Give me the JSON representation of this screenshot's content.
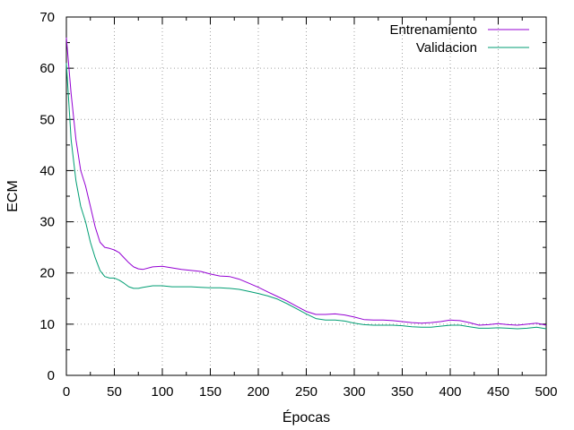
{
  "chart_data": {
    "type": "line",
    "title": "",
    "xlabel": "Épocas",
    "ylabel": "ECM",
    "xlim": [
      0,
      500
    ],
    "ylim": [
      0,
      70
    ],
    "x_ticks": [
      0,
      50,
      100,
      150,
      200,
      250,
      300,
      350,
      400,
      450,
      500
    ],
    "y_ticks": [
      0,
      10,
      20,
      30,
      40,
      50,
      60,
      70
    ],
    "grid": true,
    "legend_position": "top-right",
    "series": [
      {
        "name": "Entrenamiento",
        "color": "#9400d3",
        "x": [
          0,
          5,
          10,
          15,
          20,
          25,
          30,
          35,
          40,
          45,
          50,
          55,
          60,
          65,
          70,
          75,
          80,
          90,
          100,
          110,
          120,
          130,
          140,
          150,
          160,
          170,
          180,
          190,
          200,
          210,
          220,
          230,
          240,
          250,
          260,
          270,
          280,
          290,
          300,
          310,
          320,
          330,
          340,
          350,
          360,
          370,
          380,
          390,
          400,
          410,
          420,
          430,
          440,
          450,
          460,
          470,
          480,
          490,
          500
        ],
        "y": [
          66,
          55,
          46,
          40,
          37,
          33,
          29,
          26,
          25,
          24.8,
          24.5,
          24,
          23,
          22,
          21.2,
          20.8,
          20.7,
          21.2,
          21.3,
          21,
          20.7,
          20.5,
          20.3,
          19.8,
          19.4,
          19.3,
          18.8,
          18,
          17.2,
          16.3,
          15.4,
          14.5,
          13.5,
          12.5,
          11.9,
          11.9,
          12.0,
          11.8,
          11.4,
          10.9,
          10.8,
          10.8,
          10.7,
          10.5,
          10.3,
          10.2,
          10.3,
          10.5,
          10.8,
          10.7,
          10.3,
          9.8,
          9.9,
          10.1,
          9.9,
          9.8,
          10.0,
          10.2,
          9.8
        ]
      },
      {
        "name": "Validacion",
        "color": "#009e73",
        "x": [
          0,
          5,
          10,
          15,
          20,
          25,
          30,
          35,
          40,
          45,
          50,
          55,
          60,
          65,
          70,
          75,
          80,
          90,
          100,
          110,
          120,
          130,
          140,
          150,
          160,
          170,
          180,
          190,
          200,
          210,
          220,
          230,
          240,
          250,
          260,
          270,
          280,
          290,
          300,
          310,
          320,
          330,
          340,
          350,
          360,
          370,
          380,
          390,
          400,
          410,
          420,
          430,
          440,
          450,
          460,
          470,
          480,
          490,
          500
        ],
        "y": [
          61,
          46,
          38,
          33,
          30,
          26,
          23,
          20.5,
          19.3,
          19.0,
          19.0,
          18.6,
          18.0,
          17.3,
          17.0,
          17.0,
          17.2,
          17.5,
          17.5,
          17.3,
          17.3,
          17.3,
          17.2,
          17.1,
          17.1,
          17.0,
          16.8,
          16.4,
          16.0,
          15.5,
          14.9,
          14.0,
          13.0,
          12.0,
          11.1,
          10.8,
          10.8,
          10.6,
          10.2,
          9.9,
          9.8,
          9.8,
          9.8,
          9.7,
          9.5,
          9.4,
          9.4,
          9.6,
          9.8,
          9.8,
          9.5,
          9.2,
          9.2,
          9.3,
          9.2,
          9.1,
          9.2,
          9.4,
          9.1
        ]
      }
    ]
  }
}
